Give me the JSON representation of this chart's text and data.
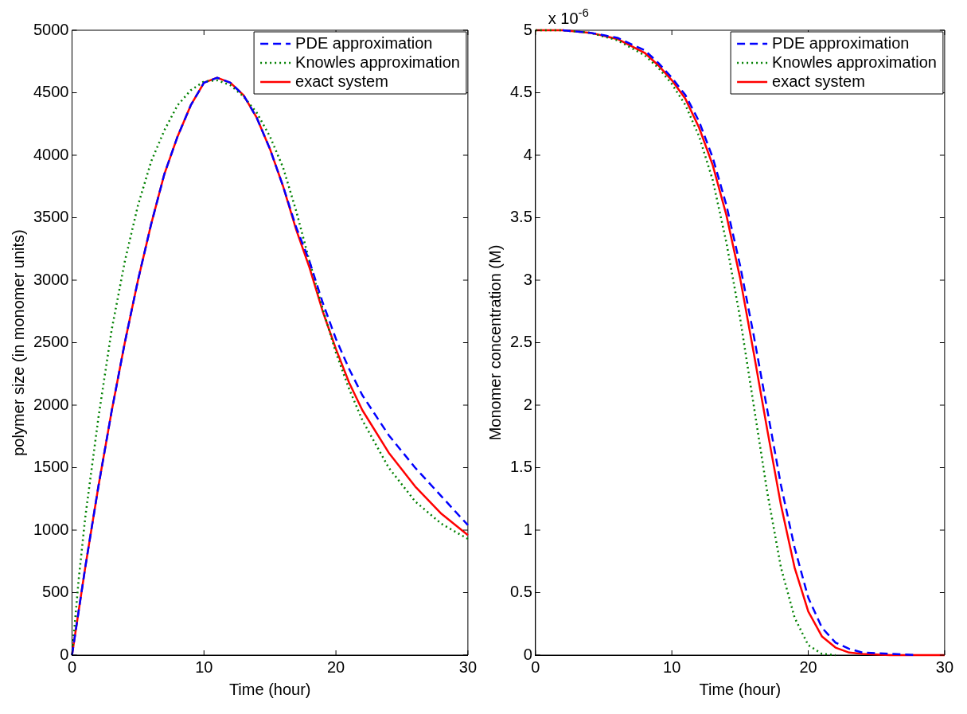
{
  "chart_data": [
    {
      "type": "line",
      "xlabel": "Time (hour)",
      "ylabel": "polymer size (in monomer units)",
      "x": [
        0,
        0.5,
        1,
        2,
        3,
        4,
        5,
        6,
        7,
        8,
        9,
        10,
        11,
        12,
        13,
        14,
        15,
        16,
        17,
        18,
        19,
        20,
        21,
        22,
        24,
        26,
        28,
        30
      ],
      "xlim": [
        0,
        30
      ],
      "xticks": [
        0,
        10,
        20,
        30
      ],
      "ylim": [
        0,
        5000
      ],
      "yticks": [
        0,
        500,
        1000,
        1500,
        2000,
        2500,
        3000,
        3500,
        4000,
        4500,
        5000
      ],
      "grid": false,
      "legend": "top right",
      "marker": "none",
      "series": [
        {
          "name": "PDE approximation",
          "color": "#0000ff",
          "line_style": "dashed",
          "values": [
            0,
            350,
            700,
            1350,
            1950,
            2500,
            3000,
            3450,
            3850,
            4150,
            4400,
            4580,
            4620,
            4580,
            4480,
            4300,
            4050,
            3750,
            3420,
            3150,
            2820,
            2530,
            2290,
            2080,
            1760,
            1500,
            1270,
            1040
          ]
        },
        {
          "name": "Knowles approximation",
          "color": "#008000",
          "line_style": "dotted",
          "values": [
            0,
            600,
            1100,
            1900,
            2600,
            3150,
            3600,
            3950,
            4200,
            4400,
            4520,
            4590,
            4600,
            4560,
            4470,
            4340,
            4150,
            3900,
            3550,
            3150,
            2770,
            2420,
            2130,
            1880,
            1500,
            1230,
            1050,
            930
          ]
        },
        {
          "name": "exact system",
          "color": "#ff0000",
          "line_style": "solid",
          "values": [
            0,
            350,
            700,
            1350,
            1950,
            2500,
            3000,
            3450,
            3850,
            4150,
            4400,
            4580,
            4620,
            4580,
            4480,
            4300,
            4050,
            3750,
            3400,
            3100,
            2750,
            2450,
            2180,
            1960,
            1620,
            1350,
            1130,
            960
          ]
        }
      ]
    },
    {
      "type": "line",
      "xlabel": "Time (hour)",
      "ylabel": "Monomer concentration (M)",
      "annotations": [
        "x 10$^{-6}$"
      ],
      "x": [
        0,
        2,
        4,
        6,
        8,
        9,
        10,
        11,
        12,
        13,
        14,
        15,
        16,
        17,
        18,
        19,
        20,
        21,
        22,
        23,
        24,
        26,
        28,
        30
      ],
      "xlim": [
        0,
        30
      ],
      "xticks": [
        0,
        10,
        20,
        30
      ],
      "ylim": [
        0,
        5
      ],
      "yticks": [
        0,
        0.5,
        1,
        1.5,
        2,
        2.5,
        3,
        3.5,
        4,
        4.5,
        5
      ],
      "grid": false,
      "legend": "top right",
      "marker": "none",
      "series": [
        {
          "name": "PDE approximation",
          "color": "#0000ff",
          "line_style": "dashed",
          "values": [
            null,
            5,
            4.98,
            4.94,
            4.84,
            4.74,
            4.62,
            4.48,
            4.27,
            3.98,
            3.6,
            3.12,
            2.56,
            1.96,
            1.36,
            0.86,
            0.46,
            0.22,
            0.1,
            0.05,
            0.02,
            0.01,
            0,
            null
          ]
        },
        {
          "name": "Knowles approximation",
          "color": "#008000",
          "line_style": "dotted",
          "values": [
            5,
            5,
            4.98,
            4.92,
            4.8,
            4.7,
            4.57,
            4.4,
            4.15,
            3.8,
            3.3,
            2.7,
            2,
            1.3,
            0.7,
            0.3,
            0.08,
            0.01,
            0,
            null,
            null,
            null,
            null,
            null
          ]
        },
        {
          "name": "exact system",
          "color": "#ff0000",
          "line_style": "solid",
          "values": [
            5,
            5,
            4.98,
            4.93,
            4.82,
            4.72,
            4.6,
            4.45,
            4.22,
            3.92,
            3.52,
            3.02,
            2.42,
            1.8,
            1.2,
            0.7,
            0.35,
            0.15,
            0.06,
            0.02,
            0.01,
            0,
            0,
            0
          ]
        }
      ]
    }
  ]
}
